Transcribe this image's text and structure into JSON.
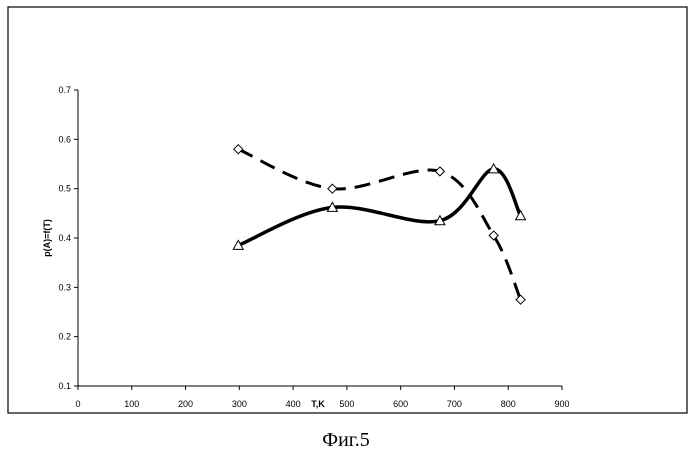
{
  "chart_data": {
    "type": "line",
    "title": "",
    "xlabel": "T,K",
    "ylabel": "p(A)=f(T)",
    "xlim": [
      0,
      900
    ],
    "ylim": [
      0.1,
      0.7
    ],
    "x_ticks": [
      0,
      100,
      200,
      300,
      400,
      500,
      600,
      700,
      800,
      900
    ],
    "y_ticks": [
      0.1,
      0.2,
      0.3,
      0.4,
      0.5,
      0.6,
      0.7
    ],
    "grid": false,
    "legend": "none",
    "series": [
      {
        "marker": "diamond",
        "line_style": "dashed",
        "color": "#000000",
        "x": [
          298,
          473,
          673,
          773,
          823
        ],
        "y": [
          0.58,
          0.5,
          0.535,
          0.405,
          0.275
        ]
      },
      {
        "marker": "triangle",
        "line_style": "solid",
        "color": "#000000",
        "x": [
          298,
          473,
          673,
          773,
          823
        ],
        "y": [
          0.385,
          0.462,
          0.435,
          0.54,
          0.445
        ]
      }
    ]
  },
  "caption": "Фиг.5"
}
